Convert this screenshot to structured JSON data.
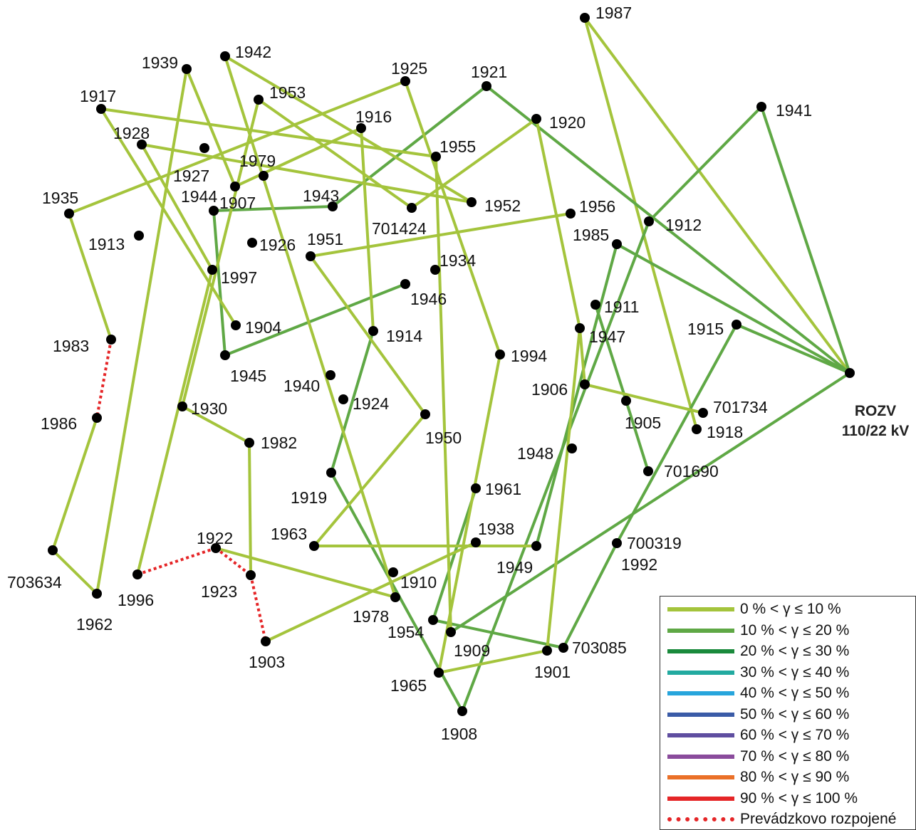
{
  "title": "",
  "colors": {
    "c0_10": "#a4c43c",
    "c10_20": "#5fa845",
    "c20_30": "#1a8a3c",
    "c30_40": "#22aaa0",
    "c40_50": "#27a5dc",
    "c50_60": "#3a5ba7",
    "c60_70": "#5f4ea0",
    "c70_80": "#8a4b9c",
    "c80_90": "#ea7028",
    "c90_100": "#e52527",
    "open": "#e52527",
    "node": "#000000"
  },
  "substation": {
    "id": "ROZV",
    "line1": "ROZV",
    "line2": "110/22 kV"
  },
  "nodes": [
    {
      "id": "1987",
      "label": "1987"
    },
    {
      "id": "1942",
      "label": "1942"
    },
    {
      "id": "1939",
      "label": "1939"
    },
    {
      "id": "1925",
      "label": "1925"
    },
    {
      "id": "1921",
      "label": "1921"
    },
    {
      "id": "1953",
      "label": "1953"
    },
    {
      "id": "1917",
      "label": "1917"
    },
    {
      "id": "1941",
      "label": "1941"
    },
    {
      "id": "1920",
      "label": "1920"
    },
    {
      "id": "1916",
      "label": "1916"
    },
    {
      "id": "1928",
      "label": "1928"
    },
    {
      "id": "1955",
      "label": "1955"
    },
    {
      "id": "1927",
      "label": "1927"
    },
    {
      "id": "1979",
      "label": "1979"
    },
    {
      "id": "1935",
      "label": "1935"
    },
    {
      "id": "1944",
      "label": "1944"
    },
    {
      "id": "1943",
      "label": "1943"
    },
    {
      "id": "1952",
      "label": "1952"
    },
    {
      "id": "1956",
      "label": "1956"
    },
    {
      "id": "1907",
      "label": "1907"
    },
    {
      "id": "701424",
      "label": "701424"
    },
    {
      "id": "1912",
      "label": "1912"
    },
    {
      "id": "1913",
      "label": "1913"
    },
    {
      "id": "1926",
      "label": "1926"
    },
    {
      "id": "1951",
      "label": "1951"
    },
    {
      "id": "1985",
      "label": "1985"
    },
    {
      "id": "1934",
      "label": "1934"
    },
    {
      "id": "1997",
      "label": "1997"
    },
    {
      "id": "1946",
      "label": "1946"
    },
    {
      "id": "1911",
      "label": "1911"
    },
    {
      "id": "1904",
      "label": "1904"
    },
    {
      "id": "1915",
      "label": "1915"
    },
    {
      "id": "1983",
      "label": "1983"
    },
    {
      "id": "1914",
      "label": "1914"
    },
    {
      "id": "1947",
      "label": "1947"
    },
    {
      "id": "1994",
      "label": "1994"
    },
    {
      "id": "1945",
      "label": "1945"
    },
    {
      "id": "ROZV",
      "label": ""
    },
    {
      "id": "1940",
      "label": "1940"
    },
    {
      "id": "1906",
      "label": "1906"
    },
    {
      "id": "1924",
      "label": "1924"
    },
    {
      "id": "701734",
      "label": "701734"
    },
    {
      "id": "1986",
      "label": "1986"
    },
    {
      "id": "1930",
      "label": "1930"
    },
    {
      "id": "1905",
      "label": "1905"
    },
    {
      "id": "1918",
      "label": "1918"
    },
    {
      "id": "1950",
      "label": "1950"
    },
    {
      "id": "1948",
      "label": "1948"
    },
    {
      "id": "1982",
      "label": "1982"
    },
    {
      "id": "701690",
      "label": "701690"
    },
    {
      "id": "1919",
      "label": "1919"
    },
    {
      "id": "1961",
      "label": "1961"
    },
    {
      "id": "1963",
      "label": "1963"
    },
    {
      "id": "1938",
      "label": "1938"
    },
    {
      "id": "1922",
      "label": "1922"
    },
    {
      "id": "700319",
      "label": "700319"
    },
    {
      "id": "1992",
      "label": "1992"
    },
    {
      "id": "1949",
      "label": "1949"
    },
    {
      "id": "703634",
      "label": "703634"
    },
    {
      "id": "1910",
      "label": "1910"
    },
    {
      "id": "1996",
      "label": "1996"
    },
    {
      "id": "1923",
      "label": "1923"
    },
    {
      "id": "1962",
      "label": "1962"
    },
    {
      "id": "1978",
      "label": "1978"
    },
    {
      "id": "1954",
      "label": "1954"
    },
    {
      "id": "703085",
      "label": "703085"
    },
    {
      "id": "1909",
      "label": "1909"
    },
    {
      "id": "1901",
      "label": "1901"
    },
    {
      "id": "1903",
      "label": "1903"
    },
    {
      "id": "1965",
      "label": "1965"
    },
    {
      "id": "1908",
      "label": "1908"
    }
  ],
  "edges": [
    {
      "from": "1987",
      "to": "ROZV",
      "load": "0-10"
    },
    {
      "from": "1987",
      "to": "1918",
      "load": "0-10"
    },
    {
      "from": "1941",
      "to": "ROZV",
      "load": "10-20"
    },
    {
      "from": "1941",
      "to": "1912",
      "load": "10-20"
    },
    {
      "from": "1921",
      "to": "ROZV",
      "load": "10-20"
    },
    {
      "from": "1921",
      "to": "1943",
      "load": "10-20"
    },
    {
      "from": "1943",
      "to": "1944",
      "load": "10-20"
    },
    {
      "from": "1944",
      "to": "1945",
      "load": "10-20"
    },
    {
      "from": "1945",
      "to": "1946",
      "load": "10-20"
    },
    {
      "from": "1985",
      "to": "ROZV",
      "load": "10-20"
    },
    {
      "from": "1985",
      "to": "1949",
      "load": "10-20"
    },
    {
      "from": "1915",
      "to": "ROZV",
      "load": "10-20"
    },
    {
      "from": "1915",
      "to": "700319",
      "load": "10-20"
    },
    {
      "from": "700319",
      "to": "703085",
      "load": "10-20"
    },
    {
      "from": "703085",
      "to": "1954",
      "load": "10-20"
    },
    {
      "from": "1954",
      "to": "1961",
      "load": "10-20"
    },
    {
      "from": "ROZV",
      "to": "1909",
      "load": "10-20"
    },
    {
      "from": "1912",
      "to": "1908",
      "load": "10-20"
    },
    {
      "from": "1908",
      "to": "1919",
      "load": "10-20"
    },
    {
      "from": "1919",
      "to": "1914",
      "load": "10-20"
    },
    {
      "from": "1911",
      "to": "1905",
      "load": "10-20"
    },
    {
      "from": "1905",
      "to": "701690",
      "load": "10-20"
    },
    {
      "from": "1920",
      "to": "1947",
      "load": "0-10"
    },
    {
      "from": "1920",
      "to": "701424",
      "load": "0-10"
    },
    {
      "from": "1947",
      "to": "1906",
      "load": "0-10"
    },
    {
      "from": "1906",
      "to": "701734",
      "load": "0-10"
    },
    {
      "from": "1947",
      "to": "1901",
      "load": "0-10"
    },
    {
      "from": "1901",
      "to": "1965",
      "load": "0-10"
    },
    {
      "from": "1965",
      "to": "1994",
      "load": "0-10"
    },
    {
      "from": "1994",
      "to": "1925",
      "load": "0-10"
    },
    {
      "from": "1925",
      "to": "1935",
      "load": "0-10"
    },
    {
      "from": "1935",
      "to": "1983",
      "load": "0-10"
    },
    {
      "from": "1942",
      "to": "1952",
      "load": "0-10"
    },
    {
      "from": "1942",
      "to": "1978",
      "load": "0-10"
    },
    {
      "from": "1978",
      "to": "1922",
      "load": "0-10"
    },
    {
      "from": "1939",
      "to": "1962",
      "load": "0-10"
    },
    {
      "from": "1939",
      "to": "1907",
      "load": "0-10"
    },
    {
      "from": "1907",
      "to": "1916",
      "load": "0-10"
    },
    {
      "from": "1916",
      "to": "1914",
      "load": "0-10"
    },
    {
      "from": "1917",
      "to": "1955",
      "load": "0-10"
    },
    {
      "from": "1917",
      "to": "1904",
      "load": "0-10"
    },
    {
      "from": "1955",
      "to": "1909",
      "load": "0-10"
    },
    {
      "from": "1953",
      "to": "701424",
      "load": "0-10"
    },
    {
      "from": "1953",
      "to": "1930",
      "load": "0-10"
    },
    {
      "from": "1930",
      "to": "1982",
      "load": "0-10"
    },
    {
      "from": "1982",
      "to": "1923",
      "load": "0-10"
    },
    {
      "from": "1928",
      "to": "1997",
      "load": "0-10"
    },
    {
      "from": "1928",
      "to": "1952",
      "load": "0-10"
    },
    {
      "from": "1997",
      "to": "1996",
      "load": "0-10"
    },
    {
      "from": "1956",
      "to": "1951",
      "load": "0-10"
    },
    {
      "from": "1951",
      "to": "1950",
      "load": "0-10"
    },
    {
      "from": "1950",
      "to": "1963",
      "load": "0-10"
    },
    {
      "from": "1963",
      "to": "1949",
      "load": "0-10"
    },
    {
      "from": "1938",
      "to": "1903",
      "load": "0-10"
    },
    {
      "from": "1986",
      "to": "703634",
      "load": "0-10"
    },
    {
      "from": "703634",
      "to": "1962",
      "load": "0-10"
    },
    {
      "from": "1983",
      "to": "1986",
      "load": "open"
    },
    {
      "from": "1996",
      "to": "1922",
      "load": "open"
    },
    {
      "from": "1922",
      "to": "1923",
      "load": "open"
    },
    {
      "from": "1923",
      "to": "1903",
      "load": "open"
    }
  ],
  "legend": [
    {
      "key": "0-10",
      "label": "0 % < γ ≤ 10 %",
      "color": "#a4c43c",
      "style": "solid"
    },
    {
      "key": "10-20",
      "label": "10 % < γ ≤ 20 %",
      "color": "#5fa845",
      "style": "solid"
    },
    {
      "key": "20-30",
      "label": "20 % < γ ≤ 30 %",
      "color": "#1a8a3c",
      "style": "solid"
    },
    {
      "key": "30-40",
      "label": "30 % < γ ≤ 40 %",
      "color": "#22aaa0",
      "style": "solid"
    },
    {
      "key": "40-50",
      "label": "40 % < γ ≤ 50 %",
      "color": "#27a5dc",
      "style": "solid"
    },
    {
      "key": "50-60",
      "label": "50 % < γ ≤ 60 %",
      "color": "#3a5ba7",
      "style": "solid"
    },
    {
      "key": "60-70",
      "label": "60 % < γ ≤ 70 %",
      "color": "#5f4ea0",
      "style": "solid"
    },
    {
      "key": "70-80",
      "label": "70 % < γ ≤ 80 %",
      "color": "#8a4b9c",
      "style": "solid"
    },
    {
      "key": "80-90",
      "label": "80 % < γ ≤ 90 %",
      "color": "#ea7028",
      "style": "solid"
    },
    {
      "key": "90-100",
      "label": "90 % < γ ≤ 100 %",
      "color": "#e52527",
      "style": "solid"
    },
    {
      "key": "open",
      "label": "Prevádzkovo rozpojené",
      "color": "#e52527",
      "style": "dotted"
    }
  ]
}
